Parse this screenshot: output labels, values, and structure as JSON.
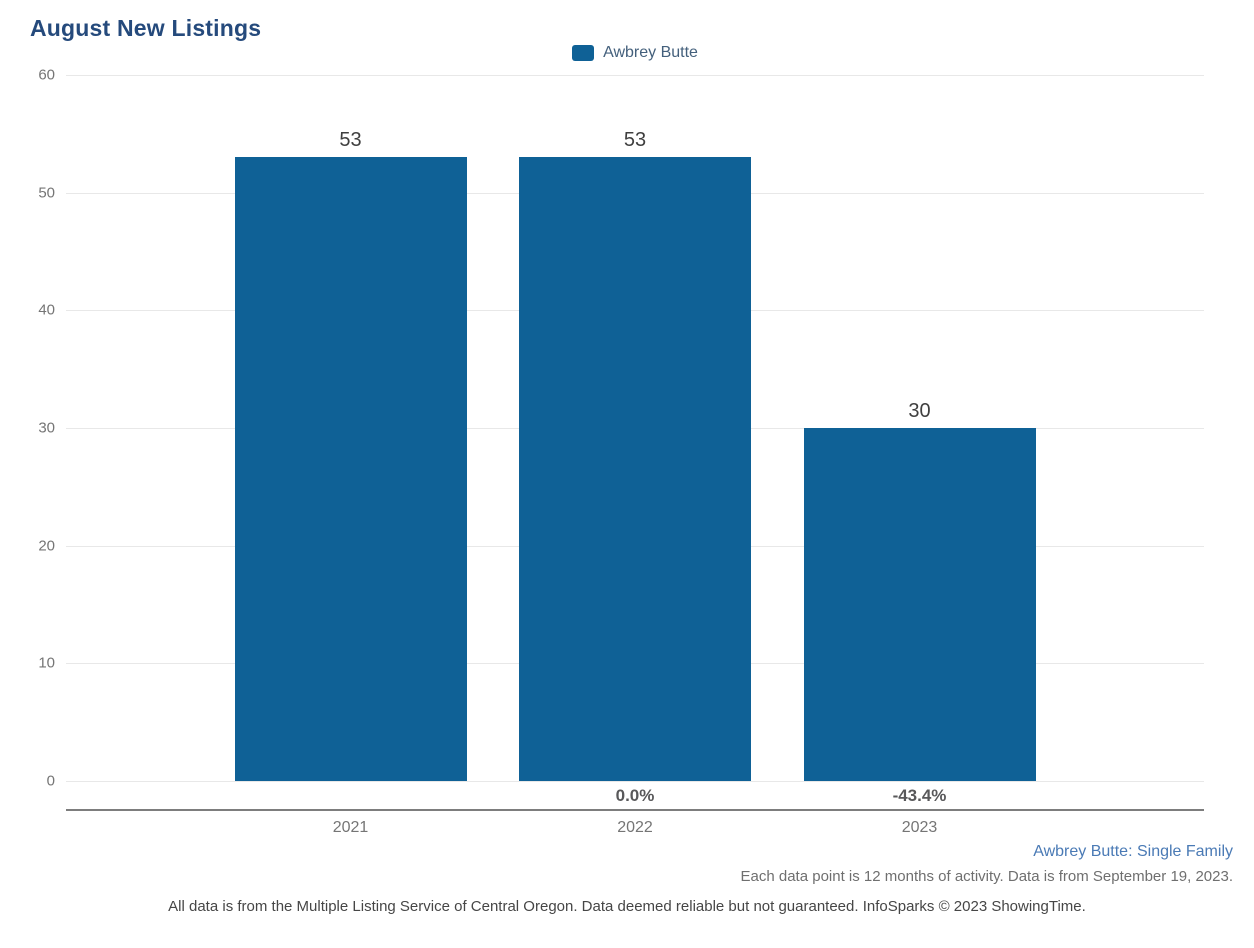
{
  "title": "August New Listings",
  "legend": {
    "label": "Awbrey Butte"
  },
  "colors": {
    "bar": "#0f6196",
    "title": "#254a7c",
    "legend_text": "#44607c",
    "gridline": "#e8e8e8",
    "axis_line": "#7d7d7d",
    "tick_text": "#757575",
    "value_text": "#3f3f3f",
    "pct_text": "#58585a",
    "series_note_text": "#4a7ab5"
  },
  "chart_data": {
    "type": "bar",
    "title": "August New Listings",
    "categories": [
      "2021",
      "2022",
      "2023"
    ],
    "series": [
      {
        "name": "Awbrey Butte",
        "values": [
          53,
          53,
          30
        ]
      }
    ],
    "bar_value_labels": [
      "53",
      "53",
      "30"
    ],
    "pct_change_labels": [
      "",
      "0.0%",
      "-43.4%"
    ],
    "yticks": [
      60,
      50,
      40,
      30,
      20,
      10,
      0
    ],
    "ylim": [
      0,
      60
    ],
    "xlabel": "",
    "ylabel": "",
    "grid": true,
    "legend_position": "top-center"
  },
  "footer": {
    "series_note": "Awbrey Butte: Single Family",
    "data_note": "Each data point is 12 months of activity. Data is from September 19, 2023.",
    "disclaimer": "All data is from the Multiple Listing Service of Central Oregon. Data deemed reliable but not guaranteed. InfoSparks © 2023 ShowingTime."
  }
}
